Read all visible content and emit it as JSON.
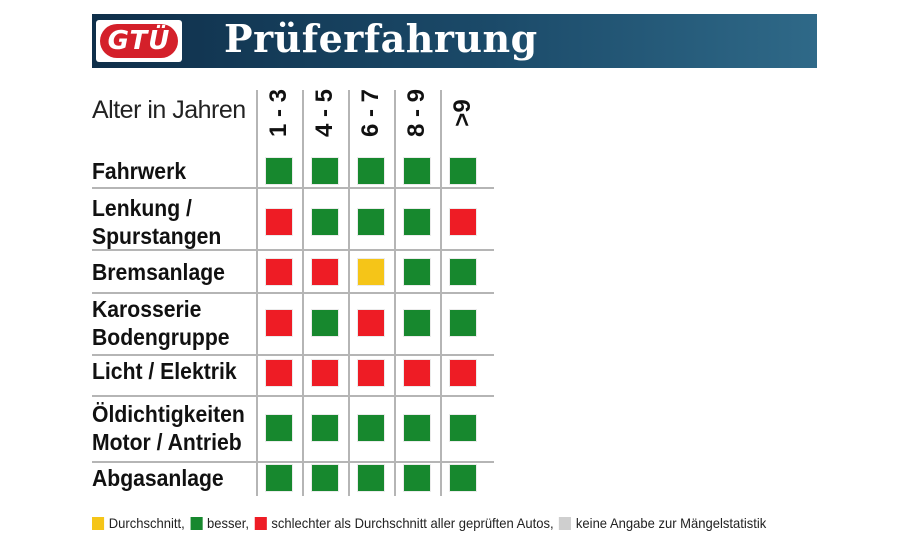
{
  "header": {
    "logo_text": "GTÜ",
    "title": "Prüferfahrung"
  },
  "chart_data": {
    "type": "table",
    "xlabel": "Alter in Jahren",
    "categories": [
      "1 - 3",
      "4 - 5",
      "6 - 7",
      "8 - 9",
      ">9"
    ],
    "rows": [
      {
        "label": [
          "Fahrwerk"
        ],
        "values": [
          "besser",
          "besser",
          "besser",
          "besser",
          "besser"
        ]
      },
      {
        "label": [
          "Lenkung /",
          "Spurstangen"
        ],
        "values": [
          "schlechter",
          "besser",
          "besser",
          "besser",
          "schlechter"
        ]
      },
      {
        "label": [
          "Bremsanlage"
        ],
        "values": [
          "schlechter",
          "schlechter",
          "durchschnitt",
          "besser",
          "besser"
        ]
      },
      {
        "label": [
          "Karosserie",
          "Bodengruppe"
        ],
        "values": [
          "schlechter",
          "besser",
          "schlechter",
          "besser",
          "besser"
        ]
      },
      {
        "label": [
          "Licht / Elektrik"
        ],
        "values": [
          "schlechter",
          "schlechter",
          "schlechter",
          "schlechter",
          "schlechter"
        ]
      },
      {
        "label": [
          "Öldichtigkeiten",
          "Motor / Antrieb"
        ],
        "values": [
          "besser",
          "besser",
          "besser",
          "besser",
          "besser"
        ]
      },
      {
        "label": [
          "Abgasanlage"
        ],
        "values": [
          "besser",
          "besser",
          "besser",
          "besser",
          "besser"
        ]
      }
    ],
    "colors": {
      "durchschnitt": "#f5c518",
      "besser": "#17882e",
      "schlechter": "#ee1c25",
      "keine": "#cfcfcf"
    }
  },
  "legend": [
    {
      "key": "durchschnitt",
      "label": "Durchschnitt,"
    },
    {
      "key": "besser",
      "label": "besser,"
    },
    {
      "key": "schlechter",
      "label": "schlechter als Durchschnitt aller geprüften Autos,"
    },
    {
      "key": "keine",
      "label": "keine Angabe zur Mängelstatistik"
    }
  ]
}
